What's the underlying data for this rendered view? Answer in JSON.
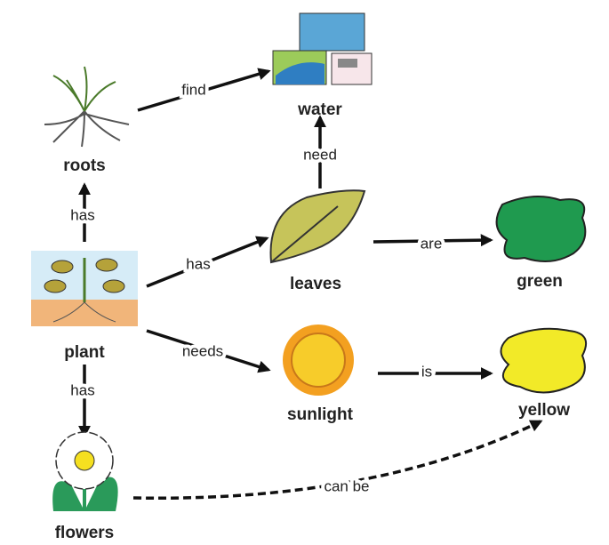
{
  "nodes": [
    {
      "label": "roots"
    },
    {
      "label": "water"
    },
    {
      "label": "plant"
    },
    {
      "label": "leaves"
    },
    {
      "label": "green"
    },
    {
      "label": "sunlight"
    },
    {
      "label": "yellow"
    },
    {
      "label": "flowers"
    }
  ],
  "edges": [
    {
      "label": "has"
    },
    {
      "label": "find"
    },
    {
      "label": "need"
    },
    {
      "label": "has"
    },
    {
      "label": "are"
    },
    {
      "label": "needs"
    },
    {
      "label": "is"
    },
    {
      "label": "has"
    },
    {
      "label": "can be"
    }
  ]
}
